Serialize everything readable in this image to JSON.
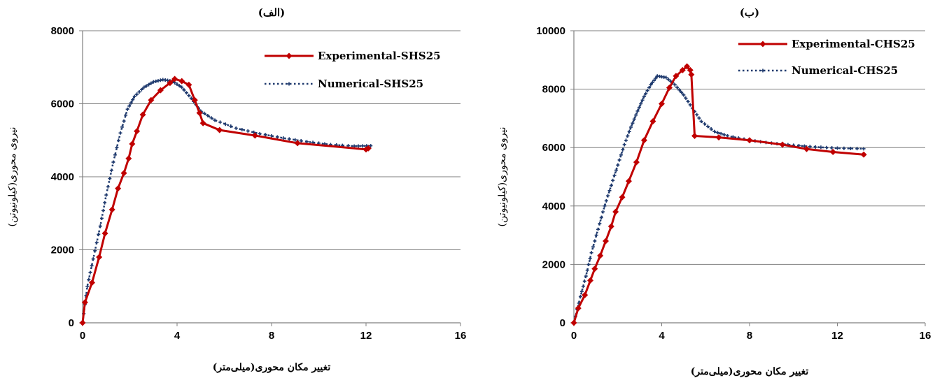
{
  "chart_data": [
    {
      "type": "line",
      "title": "(الف)",
      "xlabel": "تغییر مکان محوری(میلی‌متر)",
      "ylabel": "نیروی محوری(کیلونیوتن)",
      "xlim": [
        0,
        16
      ],
      "ylim": [
        0,
        8000
      ],
      "xticks": [
        "0",
        "4",
        "8",
        "12",
        "16"
      ],
      "yticks": [
        "0",
        "2000",
        "4000",
        "6000",
        "8000"
      ],
      "grid": "horizontal",
      "legend": "top-right",
      "colors": {
        "experimental": "#c00000",
        "numerical": "#1f3a6e"
      },
      "series": [
        {
          "name": "Experimental-SHS25",
          "x": [
            0,
            0.1,
            0.4,
            0.7,
            0.95,
            1.25,
            1.5,
            1.75,
            1.95,
            2.1,
            2.3,
            2.55,
            2.9,
            3.3,
            3.7,
            3.9,
            4.2,
            4.5,
            4.75,
            4.95,
            5.1,
            5.8,
            7.3,
            9.1,
            12.0,
            12.1
          ],
          "y": [
            0,
            560,
            1100,
            1800,
            2450,
            3100,
            3680,
            4100,
            4500,
            4900,
            5250,
            5700,
            6100,
            6370,
            6570,
            6680,
            6620,
            6520,
            6100,
            5750,
            5470,
            5280,
            5130,
            4920,
            4750,
            4780
          ]
        },
        {
          "name": "Numerical-SHS25",
          "x": [
            0,
            0.2,
            0.45,
            0.75,
            1.0,
            1.3,
            1.6,
            1.9,
            2.2,
            2.6,
            3.0,
            3.4,
            3.8,
            4.2,
            4.6,
            5.0,
            5.6,
            6.5,
            7.5,
            8.5,
            9.5,
            10.5,
            11.5,
            12.2
          ],
          "y": [
            0,
            1000,
            1750,
            2650,
            3500,
            4400,
            5200,
            5850,
            6200,
            6450,
            6600,
            6660,
            6620,
            6450,
            6150,
            5800,
            5550,
            5330,
            5180,
            5060,
            4960,
            4880,
            4840,
            4850
          ]
        }
      ]
    },
    {
      "type": "line",
      "title": "(ب)",
      "xlabel": "تغییر مکان محوری(میلی‌متر)",
      "ylabel": "نیروی محوری(کیلونیوتن)",
      "xlim": [
        0,
        16
      ],
      "ylim": [
        0,
        10000
      ],
      "xticks": [
        "0",
        "4",
        "8",
        "12",
        "16"
      ],
      "yticks": [
        "0",
        "2000",
        "4000",
        "6000",
        "8000",
        "10000"
      ],
      "grid": "horizontal",
      "legend": "top-right",
      "colors": {
        "experimental": "#c00000",
        "numerical": "#1f3a6e"
      },
      "series": [
        {
          "name": "Experimental-CHS25",
          "x": [
            0,
            0.2,
            0.5,
            0.75,
            0.95,
            1.2,
            1.45,
            1.7,
            1.9,
            2.2,
            2.5,
            2.85,
            3.2,
            3.6,
            4.0,
            4.35,
            4.65,
            4.95,
            5.15,
            5.3,
            5.35,
            5.5,
            6.6,
            8.0,
            9.5,
            10.6,
            11.8,
            13.2
          ],
          "y": [
            0,
            500,
            950,
            1450,
            1850,
            2300,
            2800,
            3300,
            3800,
            4300,
            4850,
            5500,
            6250,
            6900,
            7500,
            8050,
            8450,
            8650,
            8780,
            8650,
            8500,
            6400,
            6350,
            6250,
            6100,
            5950,
            5850,
            5760
          ]
        },
        {
          "name": "Numerical-CHS25",
          "x": [
            0,
            0.3,
            0.55,
            0.8,
            1.1,
            1.4,
            1.7,
            2.0,
            2.3,
            2.6,
            2.9,
            3.2,
            3.5,
            3.8,
            4.2,
            4.6,
            5.0,
            5.4,
            5.8,
            6.4,
            7.0,
            8.0,
            9.0,
            10.0,
            11.0,
            12.0,
            13.2
          ],
          "y": [
            0,
            900,
            1600,
            2400,
            3200,
            4000,
            4700,
            5400,
            6100,
            6700,
            7250,
            7750,
            8150,
            8450,
            8400,
            8150,
            7800,
            7350,
            6900,
            6550,
            6400,
            6250,
            6150,
            6080,
            6020,
            5980,
            5960
          ]
        }
      ]
    }
  ]
}
